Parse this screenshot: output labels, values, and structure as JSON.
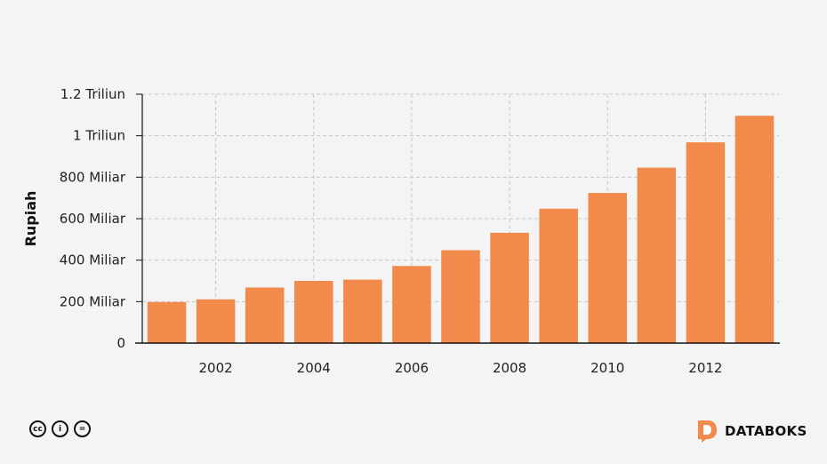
{
  "chart_data": {
    "type": "bar",
    "ylabel": "Rupiah",
    "ylim": [
      0,
      1200
    ],
    "y_unit": "Miliar Rupiah",
    "y_ticks": [
      {
        "value": 0,
        "label": "0"
      },
      {
        "value": 200,
        "label": "200 Miliar"
      },
      {
        "value": 400,
        "label": "400 Miliar"
      },
      {
        "value": 600,
        "label": "600 Miliar"
      },
      {
        "value": 800,
        "label": "800 Miliar"
      },
      {
        "value": 1000,
        "label": "1 Triliun"
      },
      {
        "value": 1200,
        "label": "1.2 Triliun"
      }
    ],
    "x_ticks": [
      "2002",
      "2004",
      "2006",
      "2008",
      "2010",
      "2012"
    ],
    "categories": [
      2001,
      2002,
      2003,
      2004,
      2005,
      2006,
      2007,
      2008,
      2009,
      2010,
      2011,
      2012,
      2013
    ],
    "values": [
      198,
      211,
      268,
      300,
      306,
      372,
      448,
      532,
      648,
      724,
      846,
      968,
      1096
    ],
    "bar_color": "#f28a4c",
    "grid": true
  },
  "footer": {
    "license_icons": [
      "cc-icon",
      "by-icon",
      "nd-icon"
    ],
    "license_glyphs": [
      "cc",
      "i",
      "="
    ],
    "brand": "DATABOKS",
    "brand_color": "#f28a4c"
  }
}
